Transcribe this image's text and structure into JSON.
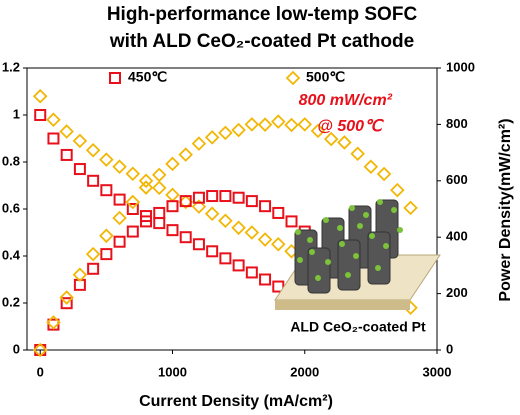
{
  "chart_data": {
    "type": "line",
    "title": [
      "High-performance low-temp SOFC",
      "with ALD CeO₂-coated Pt cathode"
    ],
    "x_label": "Current Density (mA/cm²)",
    "y2_label": "Power Density(mW/cm²)",
    "annotations": [
      "800 mW/cm²",
      "@ 500℃"
    ],
    "inset_label": "ALD CeO₂-coated Pt",
    "xlim": [
      -100,
      3000
    ],
    "xticks": [
      0,
      1000,
      2000,
      3000
    ],
    "ylim": [
      0,
      1.2
    ],
    "yticks": [
      0,
      0.2,
      0.4,
      0.6,
      0.8,
      1,
      1.2
    ],
    "y2lim": [
      0,
      1000
    ],
    "y2ticks": [
      0,
      200,
      400,
      600,
      800,
      1000
    ],
    "series": [
      {
        "name": "450℃",
        "color": "#e8101a",
        "marker": "square",
        "x": [
          0,
          100,
          200,
          300,
          400,
          500,
          600,
          700,
          800,
          900,
          1000,
          1100,
          1200,
          1300,
          1400,
          1500,
          1600,
          1700,
          1800,
          1900,
          2000
        ],
        "values": [
          1.0,
          0.9,
          0.83,
          0.77,
          0.72,
          0.68,
          0.64,
          0.6,
          0.57,
          0.54,
          0.51,
          0.48,
          0.45,
          0.42,
          0.39,
          0.36,
          0.33,
          0.3,
          0.27,
          0.24,
          0.21
        ]
      },
      {
        "name": "500℃",
        "color": "#f2b705",
        "marker": "diamond",
        "x": [
          0,
          100,
          200,
          300,
          400,
          500,
          600,
          700,
          800,
          900,
          1000,
          1100,
          1200,
          1300,
          1400,
          1500,
          1600,
          1700,
          1800,
          1900,
          2000,
          2100,
          2200,
          2300,
          2400,
          2500,
          2600,
          2700,
          2800
        ],
        "values": [
          1.08,
          0.98,
          0.93,
          0.89,
          0.85,
          0.81,
          0.78,
          0.75,
          0.72,
          0.69,
          0.66,
          0.63,
          0.61,
          0.58,
          0.55,
          0.52,
          0.5,
          0.47,
          0.45,
          0.42,
          0.4,
          0.37,
          0.34,
          0.32,
          0.29,
          0.26,
          0.24,
          0.21,
          0.18
        ]
      },
      {
        "color": "#e8101a",
        "marker": "square",
        "axis": "y2",
        "x": [
          0,
          100,
          200,
          300,
          400,
          500,
          600,
          700,
          800,
          900,
          1000,
          1100,
          1200,
          1300,
          1400,
          1500,
          1600,
          1700,
          1800,
          1900,
          2000
        ],
        "values": [
          0,
          90,
          166,
          231,
          288,
          340,
          384,
          420,
          456,
          486,
          510,
          528,
          540,
          546,
          546,
          540,
          528,
          510,
          486,
          456,
          420
        ]
      },
      {
        "color": "#f2b705",
        "marker": "diamond",
        "axis": "y2",
        "x": [
          0,
          100,
          200,
          300,
          400,
          500,
          600,
          700,
          800,
          900,
          1000,
          1100,
          1200,
          1300,
          1400,
          1500,
          1600,
          1700,
          1800,
          1900,
          2000,
          2100,
          2200,
          2300,
          2400,
          2500,
          2600,
          2700,
          2800
        ],
        "values": [
          0,
          98,
          186,
          267,
          340,
          405,
          468,
          525,
          576,
          621,
          660,
          693,
          732,
          754,
          770,
          780,
          800,
          799,
          810,
          798,
          800,
          777,
          748,
          736,
          696,
          650,
          624,
          567,
          504
        ]
      }
    ]
  }
}
